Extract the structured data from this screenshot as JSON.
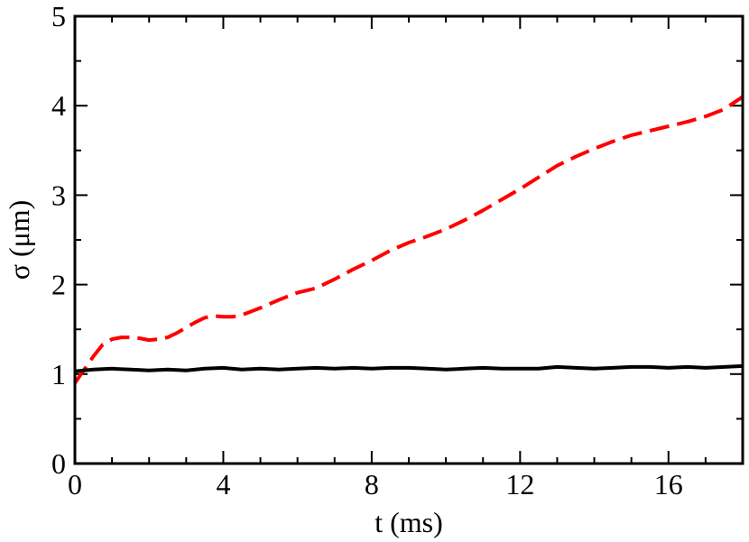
{
  "chart_data": {
    "type": "line",
    "title": "",
    "xlabel": "t (ms)",
    "ylabel": "σ (μm)",
    "xlim": [
      0,
      18
    ],
    "ylim": [
      0,
      5
    ],
    "x_major_ticks": [
      0,
      4,
      8,
      12,
      16
    ],
    "x_tick_labels": [
      "0",
      "4",
      "8",
      "12",
      "16"
    ],
    "x_minor_step": 1,
    "y_major_ticks": [
      0,
      1,
      2,
      3,
      4,
      5
    ],
    "y_tick_labels": [
      "0",
      "1",
      "2",
      "3",
      "4",
      "5"
    ],
    "y_minor_step": 0.5,
    "grid": false,
    "legend": "none",
    "series": [
      {
        "color": "#ff0000",
        "style": "dashed",
        "x": [
          0,
          0.25,
          0.5,
          0.75,
          1.0,
          1.25,
          1.5,
          1.75,
          2.0,
          2.25,
          2.5,
          2.75,
          3.0,
          3.25,
          3.5,
          3.75,
          4.0,
          4.25,
          4.5,
          5.0,
          5.5,
          6.0,
          6.5,
          7.0,
          7.5,
          8.0,
          8.5,
          9.0,
          9.5,
          10.0,
          10.5,
          11.0,
          11.5,
          12.0,
          12.5,
          13.0,
          13.5,
          14.0,
          14.5,
          15.0,
          15.5,
          16.0,
          16.5,
          17.0,
          17.5,
          18.0
        ],
        "y": [
          0.9,
          1.05,
          1.2,
          1.33,
          1.39,
          1.41,
          1.41,
          1.4,
          1.38,
          1.39,
          1.41,
          1.46,
          1.52,
          1.58,
          1.63,
          1.65,
          1.64,
          1.64,
          1.66,
          1.74,
          1.83,
          1.91,
          1.96,
          2.06,
          2.17,
          2.27,
          2.38,
          2.47,
          2.54,
          2.62,
          2.72,
          2.83,
          2.95,
          3.07,
          3.2,
          3.33,
          3.43,
          3.52,
          3.6,
          3.67,
          3.72,
          3.77,
          3.82,
          3.88,
          3.96,
          4.1
        ]
      },
      {
        "color": "#000000",
        "style": "solid",
        "x": [
          0,
          0.5,
          1.0,
          1.5,
          2.0,
          2.5,
          3.0,
          3.5,
          4.0,
          4.5,
          5.0,
          5.5,
          6.0,
          6.5,
          7.0,
          7.5,
          8.0,
          8.5,
          9.0,
          9.5,
          10.0,
          10.5,
          11.0,
          11.5,
          12.0,
          12.5,
          13.0,
          13.5,
          14.0,
          14.5,
          15.0,
          15.5,
          16.0,
          16.5,
          17.0,
          17.5,
          18.0
        ],
        "y": [
          1.03,
          1.05,
          1.06,
          1.05,
          1.04,
          1.05,
          1.04,
          1.06,
          1.07,
          1.05,
          1.06,
          1.05,
          1.06,
          1.07,
          1.06,
          1.07,
          1.06,
          1.07,
          1.07,
          1.06,
          1.05,
          1.06,
          1.07,
          1.06,
          1.06,
          1.06,
          1.08,
          1.07,
          1.06,
          1.07,
          1.08,
          1.08,
          1.07,
          1.08,
          1.07,
          1.08,
          1.09
        ]
      }
    ]
  }
}
